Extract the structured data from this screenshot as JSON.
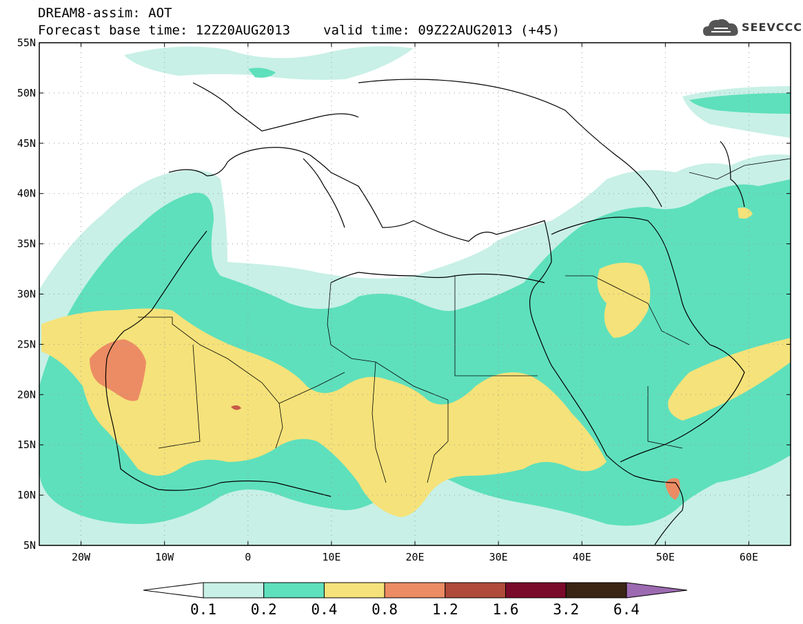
{
  "header": {
    "line1": "DREAM8-assim: AOT",
    "base_time": "Forecast base time: 12Z20AUG2013",
    "valid_time": "valid time: 09Z22AUG2013 (+45)"
  },
  "logo": {
    "text": "SEEVCCC",
    "icon": "cloud-icon"
  },
  "axes": {
    "lat_labels": [
      "55N",
      "50N",
      "45N",
      "40N",
      "35N",
      "30N",
      "25N",
      "20N",
      "15N",
      "10N",
      "5N"
    ],
    "lon_labels": [
      "20W",
      "10W",
      "0",
      "10E",
      "20E",
      "30E",
      "40E",
      "50E",
      "60E"
    ]
  },
  "colorbar": {
    "labels": [
      "0.1",
      "0.2",
      "0.4",
      "0.8",
      "1.2",
      "1.6",
      "3.2",
      "6.4"
    ],
    "colors": [
      "#ffffff",
      "#c8f0e6",
      "#5ee0bc",
      "#f5e27a",
      "#ec8c64",
      "#b04a3a",
      "#7a0a2a",
      "#3a2414",
      "#9c6ab0"
    ]
  },
  "field_colors": {
    "low": "#c8f0e6",
    "mid": "#5ee0bc",
    "high": "#f5e27a",
    "peak": "#ec8c64",
    "extreme": "#c95a4a"
  }
}
